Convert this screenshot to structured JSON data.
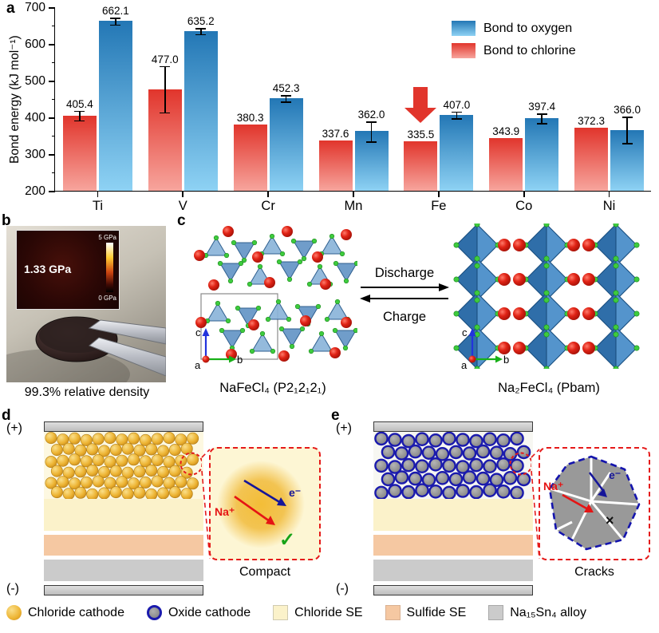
{
  "panel_labels": {
    "a": "a",
    "b": "b",
    "c": "c",
    "d": "d",
    "e": "e"
  },
  "chart_data": {
    "type": "bar",
    "title": "",
    "ylabel": "Bond energy (kJ mol⁻¹)",
    "xlabel": "",
    "ylim": [
      200,
      700
    ],
    "yticks": [
      200,
      300,
      400,
      500,
      600,
      700
    ],
    "categories": [
      "Ti",
      "V",
      "Cr",
      "Mn",
      "Fe",
      "Co",
      "Ni"
    ],
    "series": [
      {
        "name": "Bond to chlorine",
        "color_top": "#e1352c",
        "color_bottom": "#f7a59d",
        "values": [
          405.4,
          477.0,
          380.3,
          337.6,
          335.5,
          343.9,
          372.3
        ],
        "errors": [
          13,
          63,
          0,
          0,
          0,
          0,
          0
        ]
      },
      {
        "name": "Bond to oxygen",
        "color_top": "#2377b5",
        "color_bottom": "#8ed2f4",
        "values": [
          662.1,
          635.2,
          452.3,
          362.0,
          407.0,
          397.4,
          366.0
        ],
        "errors": [
          9,
          8,
          9,
          27,
          9,
          13,
          36
        ]
      }
    ],
    "legend_position": "top-right",
    "grid": false,
    "annotation": {
      "type": "down-arrow",
      "category": "Fe",
      "color": "#e1352c"
    }
  },
  "panel_b": {
    "inset_value": "1.33 GPa",
    "scale_max": "5 GPa",
    "scale_min": "0 GPa",
    "caption": "99.3% relative density"
  },
  "panel_c": {
    "left_caption": "NaFeCl₄ (P2₁2₁2₁)",
    "right_caption": "Na₂FeCl₄ (Pbam)",
    "discharge_label": "Discharge",
    "charge_label": "Charge",
    "axis": {
      "a": "a",
      "b": "b",
      "c": "c"
    }
  },
  "panel_d": {
    "positive": "(+)",
    "negative": "(-)",
    "na_label": "Na⁺",
    "e_label": "e⁻",
    "check": "✓",
    "caption": "Compact"
  },
  "panel_e": {
    "positive": "(+)",
    "negative": "(-)",
    "na_label": "Na⁺",
    "e_label": "e⁻",
    "cross": "×",
    "caption": "Cracks"
  },
  "legend": {
    "items": [
      {
        "label": "Chloride cathode"
      },
      {
        "label": "Oxide cathode"
      },
      {
        "label": "Chloride SE"
      },
      {
        "label": "Sulfide SE"
      },
      {
        "label": "Na₁₅Sn₄ alloy"
      }
    ]
  },
  "colors": {
    "oxygen_bar": "#2377b5",
    "chlorine_bar": "#e1352c",
    "chloride_se": "#fbf2ca",
    "sulfide_se": "#f5c8a2",
    "alloy": "#cbcbcb",
    "oxide_outline": "#1a1aad",
    "highlight_red": "#e51a1a"
  }
}
